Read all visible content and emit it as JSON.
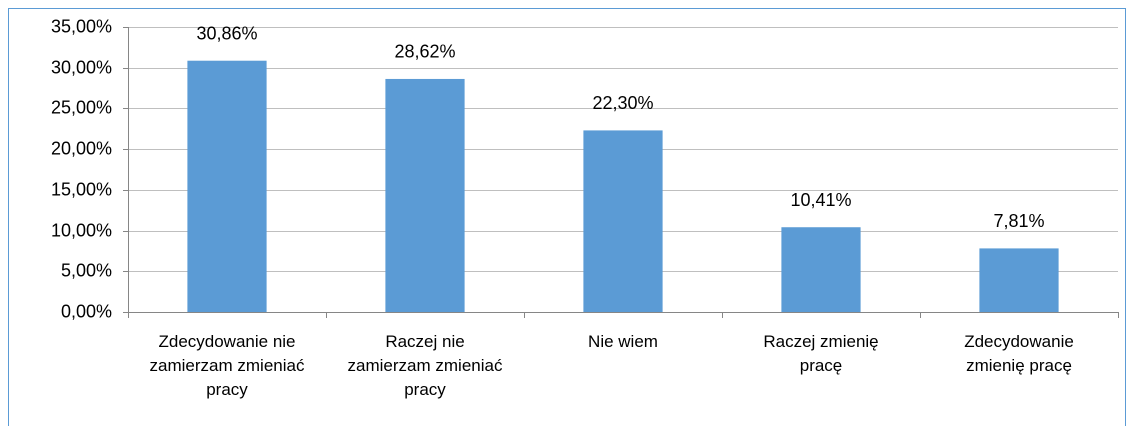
{
  "chart_data": {
    "type": "bar",
    "categories": [
      "Zdecydowanie nie zamierzam zmieniać pracy",
      "Raczej nie zamierzam zmieniać pracy",
      "Nie wiem",
      "Raczej zmienię pracę",
      "Zdecydowanie zmienię pracę"
    ],
    "values": [
      30.86,
      28.62,
      22.3,
      10.41,
      7.81
    ],
    "value_labels": [
      "30,86%",
      "28,62%",
      "22,30%",
      "10,41%",
      "7,81%"
    ],
    "color": "#5b9bd5",
    "ylim": [
      0,
      35
    ],
    "yticks": [
      {
        "value": 0,
        "label": "0,00%"
      },
      {
        "value": 5,
        "label": "5,00%"
      },
      {
        "value": 10,
        "label": "10,00%"
      },
      {
        "value": 15,
        "label": "15,00%"
      },
      {
        "value": 20,
        "label": "20,00%"
      },
      {
        "value": 25,
        "label": "25,00%"
      },
      {
        "value": 30,
        "label": "30,00%"
      },
      {
        "value": 35,
        "label": "35,00%"
      }
    ],
    "grid": true
  }
}
